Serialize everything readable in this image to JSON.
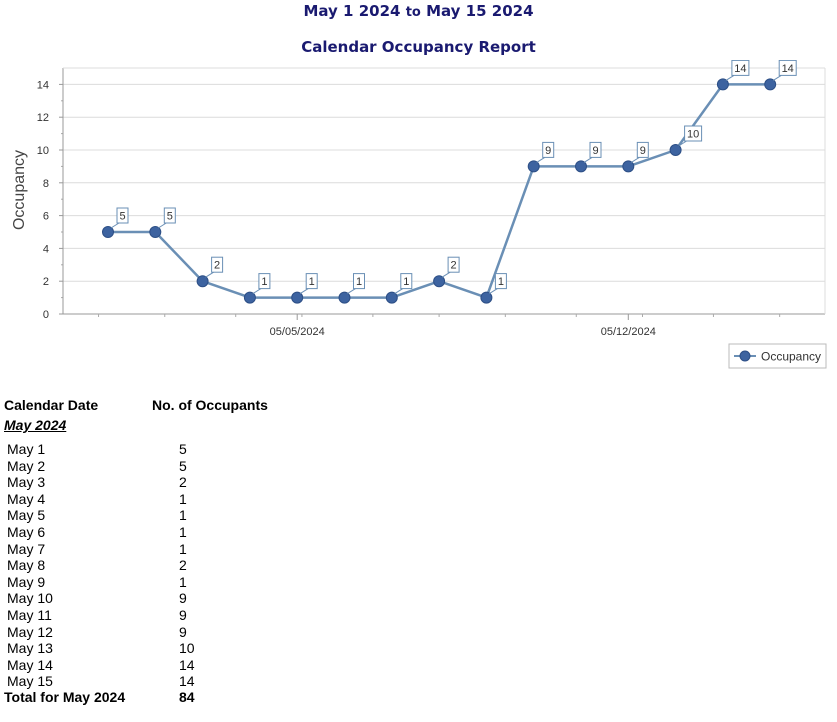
{
  "report": {
    "title_start": "May 1 2024",
    "title_to": "to",
    "title_end": "May 15 2024",
    "subtitle": "Calendar Occupancy Report"
  },
  "chart_data": {
    "type": "line",
    "ylabel": "Occupancy",
    "xlabel": "",
    "ylim": [
      0,
      15
    ],
    "yticks": [
      0,
      2,
      4,
      6,
      8,
      10,
      12,
      14
    ],
    "xtick_labels": [
      {
        "date": "2024-05-05",
        "label": "05/05/2024"
      },
      {
        "date": "2024-05-12",
        "label": "05/12/2024"
      }
    ],
    "grid": "horizontal",
    "legend": {
      "position": "bottom-right",
      "entries": [
        "Occupancy"
      ]
    },
    "series": [
      {
        "name": "Occupancy",
        "color": "#6a8fb5",
        "marker_color": "#3d63a0",
        "x": [
          "2024-05-01",
          "2024-05-02",
          "2024-05-03",
          "2024-05-04",
          "2024-05-05",
          "2024-05-06",
          "2024-05-07",
          "2024-05-08",
          "2024-05-09",
          "2024-05-10",
          "2024-05-11",
          "2024-05-12",
          "2024-05-13",
          "2024-05-14",
          "2024-05-15"
        ],
        "values": [
          5,
          5,
          2,
          1,
          1,
          1,
          1,
          2,
          1,
          9,
          9,
          9,
          10,
          14,
          14
        ]
      }
    ]
  },
  "table": {
    "col_date": "Calendar Date",
    "col_occupants": "No. of Occupants",
    "month": "May 2024",
    "rows": [
      {
        "date": "May 1",
        "value": "5"
      },
      {
        "date": "May 2",
        "value": "5"
      },
      {
        "date": "May 3",
        "value": "2"
      },
      {
        "date": "May 4",
        "value": "1"
      },
      {
        "date": "May 5",
        "value": "1"
      },
      {
        "date": "May 6",
        "value": "1"
      },
      {
        "date": "May 7",
        "value": "1"
      },
      {
        "date": "May 8",
        "value": "2"
      },
      {
        "date": "May 9",
        "value": "1"
      },
      {
        "date": "May 10",
        "value": "9"
      },
      {
        "date": "May 11",
        "value": "9"
      },
      {
        "date": "May 12",
        "value": "9"
      },
      {
        "date": "May 13",
        "value": "10"
      },
      {
        "date": "May 14",
        "value": "14"
      },
      {
        "date": "May 15",
        "value": "14"
      }
    ],
    "total_label": "Total for May 2024",
    "total_value": "84"
  }
}
